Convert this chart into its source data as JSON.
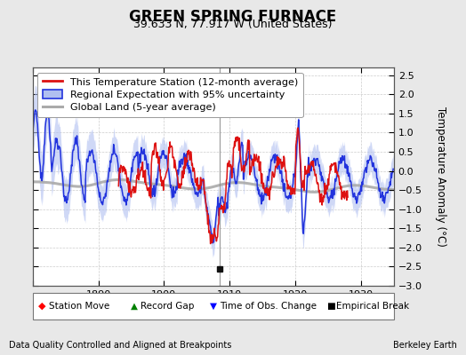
{
  "title": "GREEN SPRING FURNACE",
  "subtitle": "39.633 N, 77.917 W (United States)",
  "ylabel": "Temperature Anomaly (°C)",
  "footer_left": "Data Quality Controlled and Aligned at Breakpoints",
  "footer_right": "Berkeley Earth",
  "xlim": [
    1880,
    1935
  ],
  "ylim": [
    -3,
    2.7
  ],
  "yticks": [
    -3,
    -2.5,
    -2,
    -1.5,
    -1,
    -0.5,
    0,
    0.5,
    1,
    1.5,
    2,
    2.5
  ],
  "xticks": [
    1880,
    1890,
    1900,
    1910,
    1920,
    1930
  ],
  "xtick_labels": [
    "",
    "1890",
    "1900",
    "1910",
    "1920",
    "1930"
  ],
  "vline_x": 1908.5,
  "empirical_break_x": 1908.5,
  "empirical_break_y": -2.55,
  "background_color": "#e8e8e8",
  "plot_bg_color": "#ffffff",
  "grid_color": "#cccccc",
  "title_fontsize": 12,
  "subtitle_fontsize": 9,
  "tick_fontsize": 8,
  "legend_fontsize": 8,
  "footer_fontsize": 7
}
